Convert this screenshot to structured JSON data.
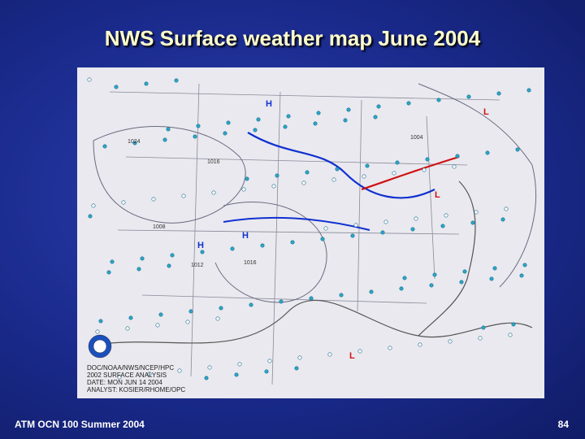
{
  "header": {
    "title": "NWS Surface weather map June 2004"
  },
  "map": {
    "caption": [
      "DOC/NOAA/NWS/NCEP/HPC",
      "2002 SURFACE ANALYSIS",
      "DATE: MON JUN 14 2004",
      "ANALYST: KOSIER/RHOME/OPC"
    ],
    "pressure_centers": [
      "H",
      "H",
      "H",
      "L",
      "L",
      "L"
    ],
    "isobar_labels": [
      "1024",
      "1016",
      "1008",
      "1012",
      "1016",
      "1004"
    ]
  },
  "footer": {
    "course": "ATM OCN 100 Summer 2004",
    "page": "84"
  }
}
